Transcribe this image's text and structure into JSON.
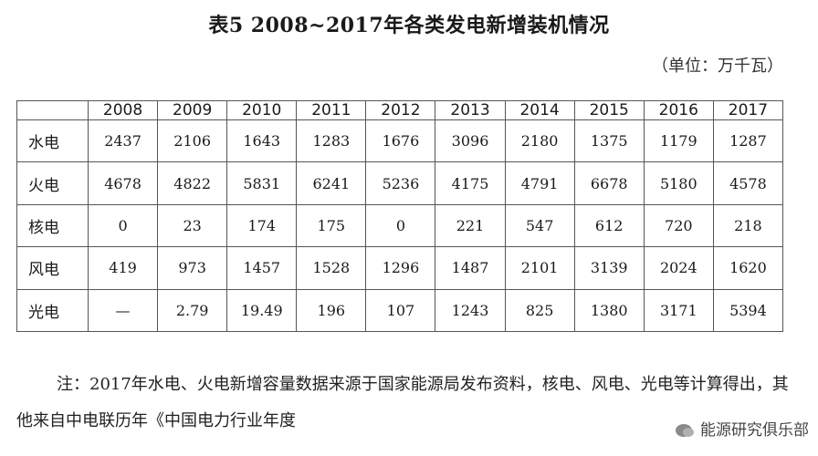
{
  "document": {
    "title": "表5  2008~2017年各类发电新增装机情况",
    "unit": "（单位：万千瓦）",
    "table": {
      "corner": "",
      "years": [
        "2008",
        "2009",
        "2010",
        "2011",
        "2012",
        "2013",
        "2014",
        "2015",
        "2016",
        "2017"
      ],
      "rows": [
        {
          "label": "水电",
          "values": [
            "2437",
            "2106",
            "1643",
            "1283",
            "1676",
            "3096",
            "2180",
            "1375",
            "1179",
            "1287"
          ]
        },
        {
          "label": "火电",
          "values": [
            "4678",
            "4822",
            "5831",
            "6241",
            "5236",
            "4175",
            "4791",
            "6678",
            "5180",
            "4578"
          ]
        },
        {
          "label": "核电",
          "values": [
            "0",
            "23",
            "174",
            "175",
            "0",
            "221",
            "547",
            "612",
            "720",
            "218"
          ]
        },
        {
          "label": "风电",
          "values": [
            "419",
            "973",
            "1457",
            "1528",
            "1296",
            "1487",
            "2101",
            "3139",
            "2024",
            "1620"
          ]
        },
        {
          "label": "光电",
          "values": [
            "—",
            "2.79",
            "19.49",
            "196",
            "107",
            "1243",
            "825",
            "1380",
            "3171",
            "5394"
          ]
        }
      ]
    },
    "note": "注：2017年水电、火电新增容量数据来源于国家能源局发布资料，核电、风电、光电等计算得出，其他来自中电联历年《中国电力行业年度",
    "watermark": "能源研究俱乐部",
    "watermark_icon": "wechat-icon"
  }
}
